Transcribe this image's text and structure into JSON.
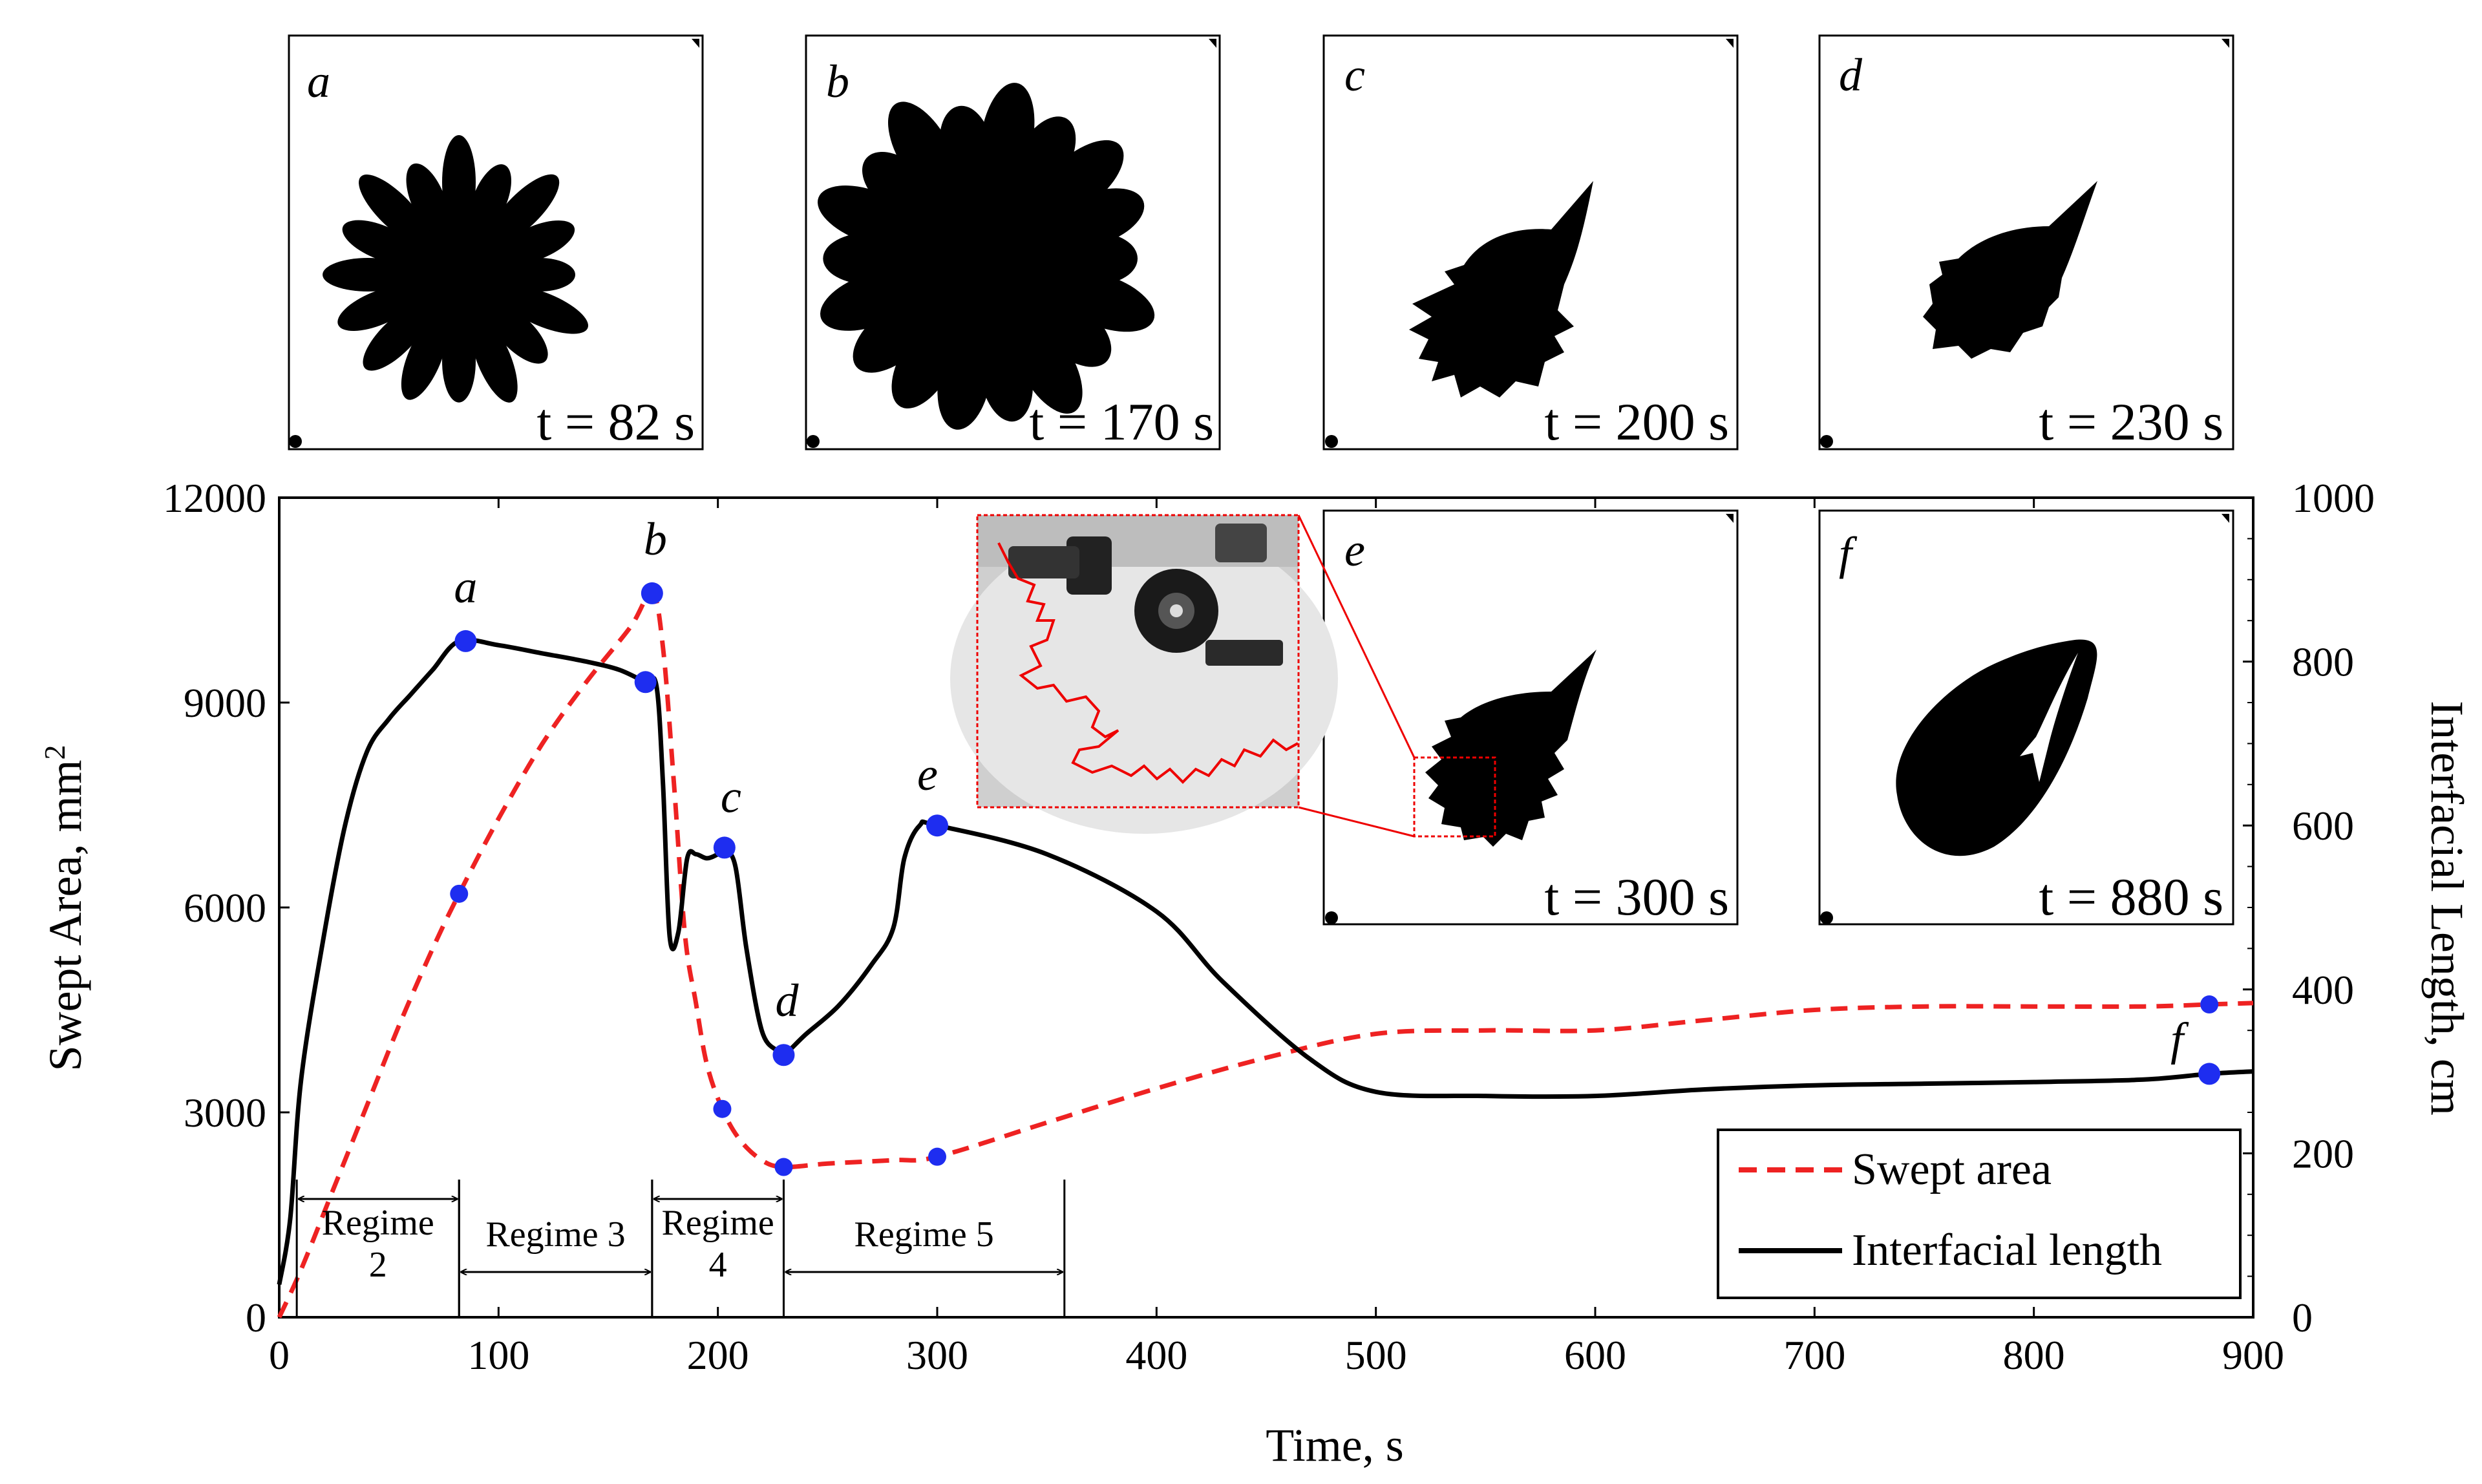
{
  "chart_data": {
    "type": "line",
    "xlabel": "Time, s",
    "ylabel": "Swept Area, mm²",
    "ylabel_main": "Swept Area, mm",
    "ylabel_sup": "2",
    "y2label": "Interfacial Length, cm",
    "xlim": [
      0,
      900
    ],
    "ylim": [
      0,
      12000
    ],
    "y2lim": [
      0,
      1000
    ],
    "xticks": [
      0,
      100,
      200,
      300,
      400,
      500,
      600,
      700,
      800,
      900
    ],
    "yticks": [
      0,
      3000,
      6000,
      9000,
      12000
    ],
    "y2ticks": [
      0,
      200,
      400,
      600,
      800,
      1000
    ],
    "series": [
      {
        "name": "Swept area",
        "axis": "left",
        "color": "#ee2222",
        "style": "dashed",
        "x": [
          0,
          10,
          25,
          40,
          55,
          70,
          82,
          100,
          120,
          140,
          160,
          170,
          175,
          180,
          185,
          190,
          195,
          202,
          210,
          220,
          230,
          250,
          280,
          300,
          350,
          400,
          450,
          500,
          550,
          600,
          650,
          700,
          750,
          800,
          850,
          880,
          900
        ],
        "y": [
          0,
          700,
          1900,
          3100,
          4300,
          5400,
          6200,
          7300,
          8400,
          9300,
          10100,
          10600,
          9800,
          7800,
          5600,
          4600,
          3700,
          3050,
          2600,
          2300,
          2200,
          2250,
          2300,
          2350,
          2850,
          3350,
          3800,
          4150,
          4200,
          4200,
          4350,
          4500,
          4550,
          4550,
          4550,
          4580,
          4600
        ]
      },
      {
        "name": "Interfacial length",
        "axis": "right",
        "color": "#000000",
        "style": "solid",
        "x": [
          0,
          5,
          10,
          20,
          30,
          40,
          50,
          60,
          70,
          82,
          100,
          120,
          140,
          155,
          167,
          172,
          175,
          178,
          182,
          186,
          190,
          195,
          200,
          203,
          208,
          213,
          220,
          227,
          230,
          240,
          255,
          270,
          280,
          285,
          292,
          300,
          350,
          400,
          430,
          470,
          500,
          550,
          600,
          650,
          700,
          750,
          800,
          850,
          880,
          900
        ],
        "y": [
          40,
          120,
          290,
          460,
          600,
          690,
          730,
          760,
          790,
          825,
          820,
          810,
          800,
          790,
          775,
          770,
          650,
          465,
          470,
          560,
          565,
          560,
          565,
          570,
          550,
          450,
          350,
          325,
          320,
          345,
          380,
          430,
          475,
          560,
          600,
          600,
          565,
          495,
          410,
          315,
          275,
          270,
          270,
          278,
          283,
          285,
          287,
          290,
          297,
          300
        ]
      }
    ],
    "markers": [
      {
        "label": "a",
        "series": "Interfacial length",
        "x": 85,
        "y": 825
      },
      {
        "label": "b",
        "series": "Swept area",
        "x": 170,
        "y": 10600
      },
      {
        "label": "",
        "series": "Interfacial length",
        "x": 167,
        "y": 775
      },
      {
        "label": "",
        "series": "Swept area",
        "x": 82,
        "y": 6200
      },
      {
        "label": "c",
        "series": "Interfacial length",
        "x": 203,
        "y": 573
      },
      {
        "label": "",
        "series": "Swept area",
        "x": 202,
        "y": 3050
      },
      {
        "label": "d",
        "series": "Interfacial length",
        "x": 230,
        "y": 320
      },
      {
        "label": "",
        "series": "Swept area",
        "x": 230,
        "y": 2200
      },
      {
        "label": "e",
        "series": "Interfacial length",
        "x": 300,
        "y": 600
      },
      {
        "label": "",
        "series": "Swept area",
        "x": 300,
        "y": 2350
      },
      {
        "label": "f",
        "series": "Interfacial length",
        "x": 880,
        "y": 297
      },
      {
        "label": "",
        "series": "Swept area",
        "x": 880,
        "y": 4580
      }
    ],
    "regimes": [
      {
        "label_line1": "Regime",
        "label_line2": "2",
        "x_start": 8,
        "x_end": 82
      },
      {
        "label_line1": "Regime 3",
        "label_line2": "",
        "x_start": 82,
        "x_end": 170
      },
      {
        "label_line1": "Regime",
        "label_line2": "4",
        "x_start": 170,
        "x_end": 230
      },
      {
        "label_line1": "Regime 5",
        "label_line2": "",
        "x_start": 230,
        "x_end": 358
      }
    ],
    "legend": {
      "position": "bottom-right",
      "entries": [
        "Swept area",
        "Interfacial length"
      ]
    }
  },
  "panels": [
    {
      "letter": "a",
      "time": "t = 82 s"
    },
    {
      "letter": "b",
      "time": "t = 170 s"
    },
    {
      "letter": "c",
      "time": "t = 200 s"
    },
    {
      "letter": "d",
      "time": "t = 230 s"
    },
    {
      "letter": "e",
      "time": "t = 300 s"
    },
    {
      "letter": "f",
      "time": "t = 880 s"
    }
  ]
}
